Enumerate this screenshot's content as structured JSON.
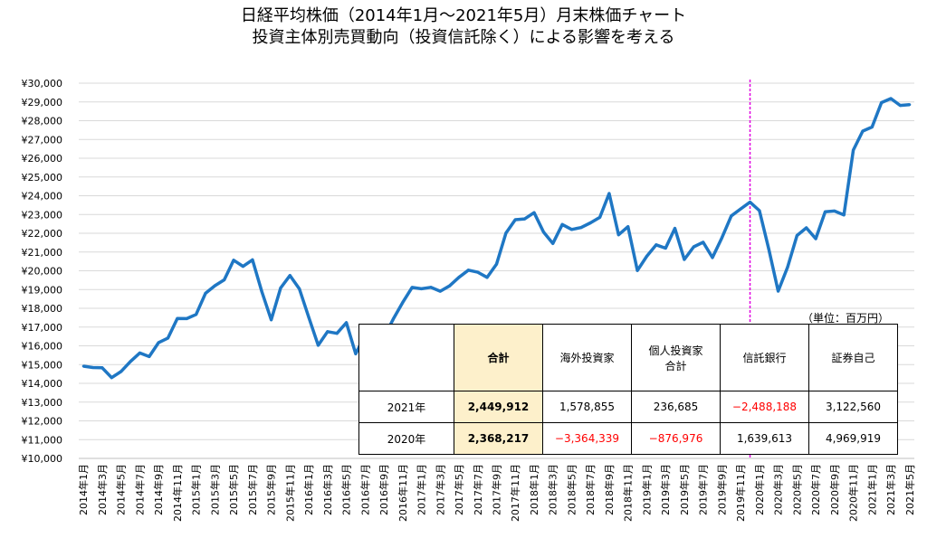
{
  "title_lines": [
    "日経平均株価（2014年1月～2021年5月）月末株価チャート",
    "投資主体別売買動向（投資信託除く）による影響を考える"
  ],
  "colors": {
    "line": "#1f77c4",
    "marker_line": "#e000e0",
    "grid": "#d9d9d9",
    "highlight": "#fdf0cb",
    "negative": "#ff0000"
  },
  "chart_data": {
    "type": "line",
    "title": "日経平均株価（2014年1月～2021年5月）月末株価チャート",
    "ylim": [
      10000,
      30000
    ],
    "y_ticks": [
      "¥10,000",
      "¥11,000",
      "¥12,000",
      "¥13,000",
      "¥14,000",
      "¥15,000",
      "¥16,000",
      "¥17,000",
      "¥18,000",
      "¥19,000",
      "¥20,000",
      "¥21,000",
      "¥22,000",
      "¥23,000",
      "¥24,000",
      "¥25,000",
      "¥26,000",
      "¥27,000",
      "¥28,000",
      "¥29,000",
      "¥30,000"
    ],
    "x_tick_labels": [
      "2014年1月",
      "2014年3月",
      "2014年5月",
      "2014年7月",
      "2014年9月",
      "2014年11月",
      "2015年1月",
      "2015年3月",
      "2015年5月",
      "2015年7月",
      "2015年9月",
      "2015年11月",
      "2016年1月",
      "2016年3月",
      "2016年5月",
      "2016年7月",
      "2016年9月",
      "2016年11月",
      "2017年1月",
      "2017年3月",
      "2017年5月",
      "2017年7月",
      "2017年9月",
      "2017年11月",
      "2018年1月",
      "2018年3月",
      "2018年5月",
      "2018年7月",
      "2018年9月",
      "2018年11月",
      "2019年1月",
      "2019年3月",
      "2019年5月",
      "2019年7月",
      "2019年9月",
      "2019年11月",
      "2020年1月",
      "2020年3月",
      "2020年5月",
      "2020年7月",
      "2020年9月",
      "2020年11月",
      "2021年1月",
      "2021年3月",
      "2021年5月"
    ],
    "marker_month": "2019年12月",
    "series": [
      {
        "start": "2014年1月",
        "values": [
          14914,
          14841,
          14828,
          14304,
          14632,
          15162,
          15621,
          15425,
          16174,
          16414,
          17460,
          17451,
          17674,
          18798,
          19207,
          19520,
          20563,
          20236,
          20585,
          18890,
          17388,
          19083,
          19747,
          19034,
          17518,
          16027,
          16759,
          16666,
          17235,
          15576,
          16570,
          16887,
          16450,
          17425,
          18309,
          19114,
          19041,
          19119,
          18909,
          19197,
          19651,
          20033,
          19925,
          19646,
          20356,
          22012,
          22725,
          22765,
          23098,
          22068,
          21454,
          22468,
          22202,
          22305,
          22554,
          22846,
          24120,
          21920,
          22351,
          20015,
          20773,
          21385,
          21206,
          22259,
          20601,
          21276,
          21522,
          20704,
          21756,
          22927,
          23294,
          23657,
          23205,
          21143,
          18917,
          20194,
          21878,
          22288,
          21710,
          23140,
          23185,
          22977,
          26434,
          27444,
          27664,
          28966,
          29179,
          28813,
          28860
        ]
      }
    ]
  },
  "table": {
    "unit_note": "（単位：百万円）",
    "headers": [
      "",
      "合計",
      "海外投資家",
      "個人投資家\n合計",
      "信託銀行",
      "証券自己"
    ],
    "rows": [
      {
        "label": "2021年",
        "cells": [
          "2,449,912",
          "1,578,855",
          "236,685",
          "−2,488,188",
          "3,122,560"
        ]
      },
      {
        "label": "2020年",
        "cells": [
          "2,368,217",
          "−3,364,339",
          "−876,976",
          "1,639,613",
          "4,969,919"
        ]
      }
    ]
  }
}
